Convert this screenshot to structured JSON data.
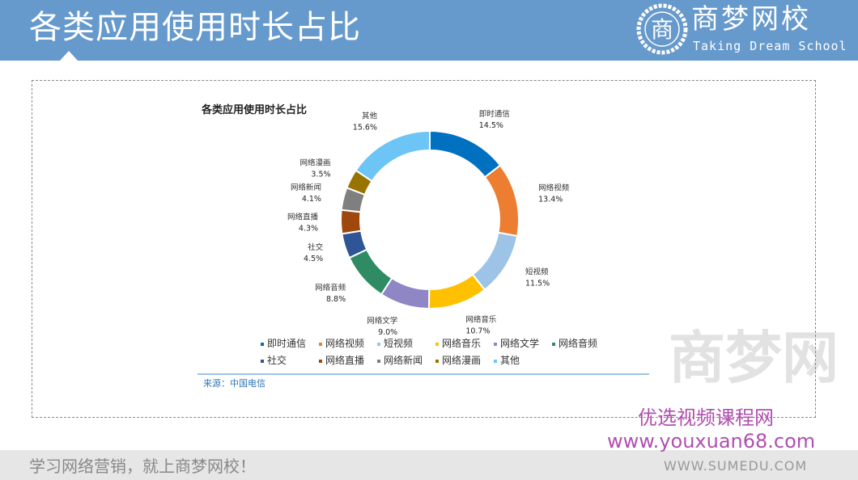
{
  "header": {
    "title": "各类应用使用时长占比",
    "logo_name": "商梦网校",
    "logo_en": "Taking Dream School",
    "logo_seal": "商"
  },
  "footer": {
    "slogan": "学习网络营销，就上商梦网校！"
  },
  "watermark": {
    "line1": "优选视频课程网",
    "line2": "www.youxuan68.com",
    "line3": "WWW.SUMEDU.COM",
    "bg": "商梦网"
  },
  "chart_data": {
    "type": "pie",
    "donut": true,
    "title": "各类应用使用时长占比",
    "source": "来源：中国电信",
    "legend_position": "bottom",
    "categories": [
      "即时通信",
      "网络视频",
      "短视频",
      "网络音乐",
      "网络文学",
      "网络音频",
      "社交",
      "网络直播",
      "网络新闻",
      "网络漫画",
      "其他"
    ],
    "values": [
      14.5,
      13.4,
      11.5,
      10.7,
      9.0,
      8.8,
      4.5,
      4.3,
      4.1,
      3.5,
      15.6
    ],
    "labels": [
      "14.5%",
      "13.4%",
      "11.5%",
      "10.7%",
      "9.0%",
      "8.8%",
      "4.5%",
      "4.3%",
      "4.1%",
      "3.5%",
      "15.6%"
    ],
    "colors": [
      "#0070C0",
      "#ED7D31",
      "#9DC3E6",
      "#FFC000",
      "#8E86C5",
      "#2E8B63",
      "#2F5597",
      "#9E480E",
      "#7F7F7F",
      "#997300",
      "#6CC5F5"
    ]
  }
}
